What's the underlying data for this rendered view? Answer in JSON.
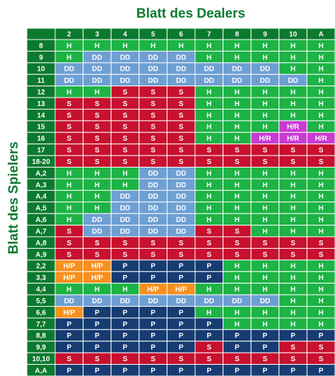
{
  "header": {
    "title": "Blatt des Dealers",
    "side_label": "Blatt des Spielers"
  },
  "colors": {
    "H": "#1db345",
    "DD": "#6e9fd3",
    "S": "#c7112f",
    "P": "#163c72",
    "H/P": "#f7901e",
    "H/R": "#c83ad2"
  },
  "table": {
    "columns": [
      "2",
      "3",
      "4",
      "5",
      "6",
      "7",
      "8",
      "9",
      "10",
      "A"
    ],
    "rows": [
      {
        "label": "8",
        "cells": [
          "H",
          "H",
          "H",
          "H",
          "H",
          "H",
          "H",
          "H",
          "H",
          "H"
        ]
      },
      {
        "label": "9",
        "cells": [
          "H",
          "DD",
          "DD",
          "DD",
          "DD",
          "H",
          "H",
          "H",
          "H",
          "H"
        ]
      },
      {
        "label": "10",
        "cells": [
          "DD",
          "DD",
          "DD",
          "DD",
          "DD",
          "DD",
          "DD",
          "DD",
          "H",
          "H"
        ]
      },
      {
        "label": "11",
        "cells": [
          "DD",
          "DD",
          "DD",
          "DD",
          "DD",
          "DD",
          "DD",
          "DD",
          "DD",
          "H"
        ]
      },
      {
        "label": "12",
        "cells": [
          "H",
          "H",
          "S",
          "S",
          "S",
          "H",
          "H",
          "H",
          "H",
          "H"
        ]
      },
      {
        "label": "13",
        "cells": [
          "S",
          "S",
          "S",
          "S",
          "S",
          "H",
          "H",
          "H",
          "H",
          "H"
        ]
      },
      {
        "label": "14",
        "cells": [
          "S",
          "S",
          "S",
          "S",
          "S",
          "H",
          "H",
          "H",
          "H",
          "H"
        ]
      },
      {
        "label": "15",
        "cells": [
          "S",
          "S",
          "S",
          "S",
          "S",
          "H",
          "H",
          "H",
          "H/R",
          "H"
        ]
      },
      {
        "label": "16",
        "cells": [
          "S",
          "S",
          "S",
          "S",
          "S",
          "H",
          "H",
          "H/R",
          "H/R",
          "H/R"
        ]
      },
      {
        "label": "17",
        "cells": [
          "S",
          "S",
          "S",
          "S",
          "S",
          "S",
          "S",
          "S",
          "S",
          "S"
        ]
      },
      {
        "label": "18-20",
        "cells": [
          "S",
          "S",
          "S",
          "S",
          "S",
          "S",
          "S",
          "S",
          "S",
          "S"
        ]
      },
      {
        "label": "A,2",
        "cells": [
          "H",
          "H",
          "H",
          "DD",
          "DD",
          "H",
          "H",
          "H",
          "H",
          "H"
        ]
      },
      {
        "label": "A,3",
        "cells": [
          "H",
          "H",
          "H",
          "DD",
          "DD",
          "H",
          "H",
          "H",
          "H",
          "H"
        ]
      },
      {
        "label": "A,4",
        "cells": [
          "H",
          "H",
          "DD",
          "DD",
          "DD",
          "H",
          "H",
          "H",
          "H",
          "H"
        ]
      },
      {
        "label": "A,5",
        "cells": [
          "H",
          "H",
          "DD",
          "DD",
          "DD",
          "H",
          "H",
          "H",
          "H",
          "H"
        ]
      },
      {
        "label": "A,6",
        "cells": [
          "H",
          "DD",
          "DD",
          "DD",
          "DD",
          "H",
          "H",
          "H",
          "H",
          "H"
        ]
      },
      {
        "label": "A,7",
        "cells": [
          "S",
          "DD",
          "DD",
          "DD",
          "DD",
          "S",
          "S",
          "H",
          "H",
          "H"
        ]
      },
      {
        "label": "A,8",
        "cells": [
          "S",
          "S",
          "S",
          "S",
          "S",
          "S",
          "S",
          "S",
          "S",
          "S"
        ]
      },
      {
        "label": "A,9",
        "cells": [
          "S",
          "S",
          "S",
          "S",
          "S",
          "S",
          "S",
          "S",
          "S",
          "S"
        ]
      },
      {
        "label": "2,2",
        "cells": [
          "H/P",
          "H/P",
          "P",
          "P",
          "P",
          "P",
          "H",
          "H",
          "H",
          "H"
        ]
      },
      {
        "label": "3,3",
        "cells": [
          "H/P",
          "H/P",
          "P",
          "P",
          "P",
          "P",
          "H",
          "H",
          "H",
          "H"
        ]
      },
      {
        "label": "4,4",
        "cells": [
          "H",
          "H",
          "H",
          "H/P",
          "H/P",
          "H",
          "H",
          "H",
          "H",
          "H"
        ]
      },
      {
        "label": "5,5",
        "cells": [
          "DD",
          "DD",
          "DD",
          "DD",
          "DD",
          "DD",
          "DD",
          "DD",
          "H",
          "H"
        ]
      },
      {
        "label": "6,6",
        "cells": [
          "H/P",
          "P",
          "P",
          "P",
          "P",
          "H",
          "H",
          "H",
          "H",
          "H"
        ]
      },
      {
        "label": "7,7",
        "cells": [
          "P",
          "P",
          "P",
          "P",
          "P",
          "P",
          "H",
          "H",
          "H",
          "H"
        ]
      },
      {
        "label": "8,8",
        "cells": [
          "P",
          "P",
          "P",
          "P",
          "P",
          "P",
          "P",
          "P",
          "P",
          "P"
        ]
      },
      {
        "label": "9,9",
        "cells": [
          "P",
          "P",
          "P",
          "P",
          "P",
          "S",
          "P",
          "P",
          "S",
          "S"
        ]
      },
      {
        "label": "10,10",
        "cells": [
          "S",
          "S",
          "S",
          "S",
          "S",
          "S",
          "S",
          "S",
          "S",
          "S"
        ]
      },
      {
        "label": "A,A",
        "cells": [
          "P",
          "P",
          "P",
          "P",
          "P",
          "P",
          "P",
          "P",
          "P",
          "P"
        ]
      }
    ]
  }
}
